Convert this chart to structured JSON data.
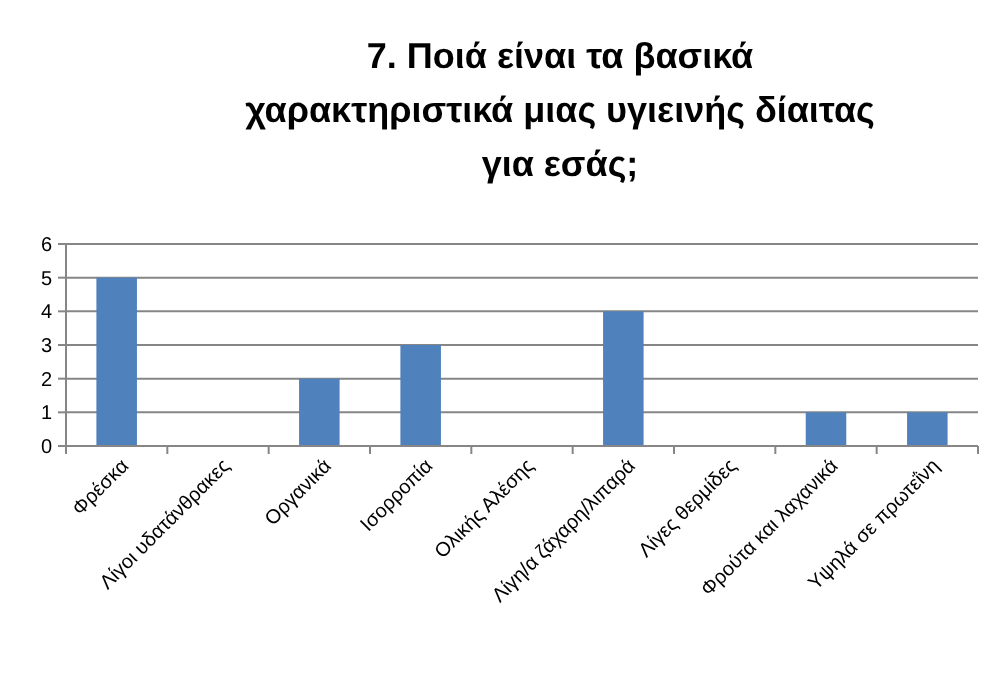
{
  "chart_data": {
    "type": "bar",
    "title": "7. Ποιά είναι τα βασικά χαρακτηριστικά μιας υγιεινής δίαιτας για εσάς;",
    "categories": [
      "Φρέσκα",
      "Λίγοι υδατάνθρακες",
      "Οργανικά",
      "Ισορροπία",
      "Ολικής Αλέσης",
      "Λίγη/α ζάχαρη/λιπαρά",
      "Λίγες θερμίδες",
      "Φρούτα και λαχανικά",
      "Υψηλά σε πρωτεΐνη"
    ],
    "values": [
      5,
      0,
      2,
      3,
      0,
      4,
      0,
      1,
      1
    ],
    "color": "#4f81bd",
    "ylim": [
      0,
      6
    ],
    "yticks": [
      0,
      1,
      2,
      3,
      4,
      5,
      6
    ],
    "grid": "y"
  }
}
